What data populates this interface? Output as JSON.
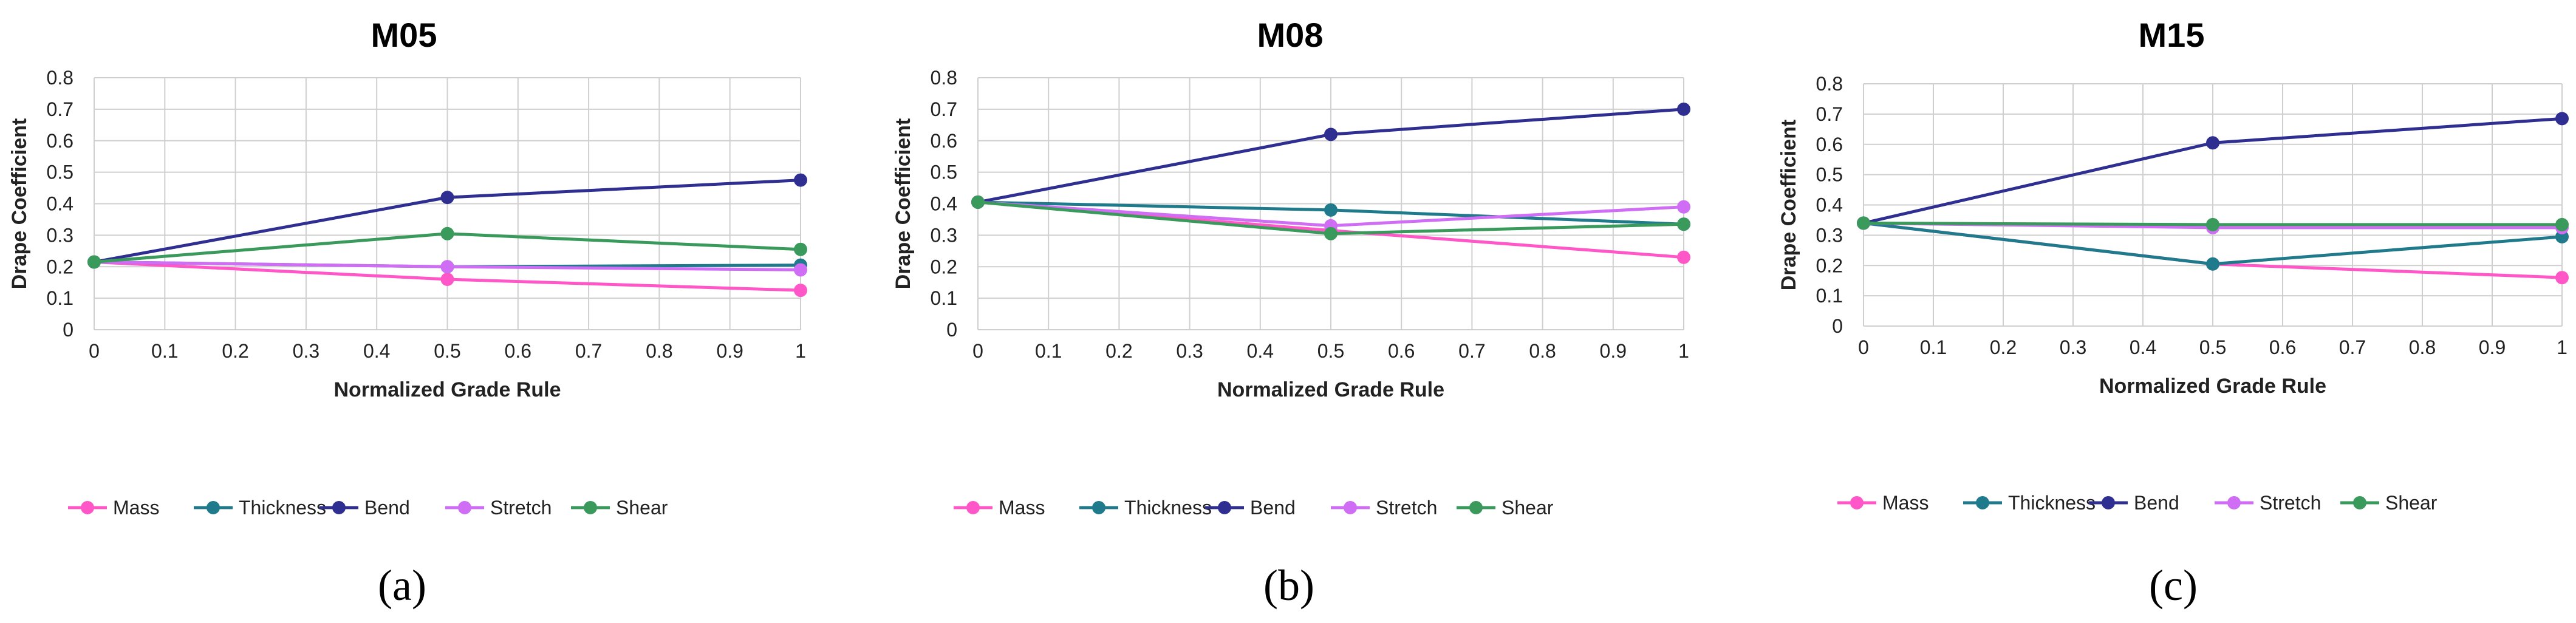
{
  "colors": {
    "Mass": "#ff57c8",
    "Thickness": "#1f7a8c",
    "Bend": "#2e2f91",
    "Stretch": "#cf6df5",
    "Shear": "#3a9a5c"
  },
  "chart_data": [
    {
      "type": "line",
      "title": "M05",
      "xlabel": "Normalized Grade Rule",
      "ylabel": "Drape Coefficient",
      "panel_label": "(a)",
      "x": [
        0,
        0.5,
        1
      ],
      "xlim": [
        0,
        1
      ],
      "ylim": [
        0,
        0.8
      ],
      "xticks": [
        "0",
        "0.1",
        "0.2",
        "0.3",
        "0.4",
        "0.5",
        "0.6",
        "0.7",
        "0.8",
        "0.9",
        "1"
      ],
      "yticks": [
        "0",
        "0.1",
        "0.2",
        "0.3",
        "0.4",
        "0.5",
        "0.6",
        "0.7",
        "0.8"
      ],
      "grid": true,
      "legend": "bottom",
      "series": [
        {
          "name": "Mass",
          "values": [
            0.215,
            0.16,
            0.125
          ]
        },
        {
          "name": "Thickness",
          "values": [
            0.215,
            0.2,
            0.205
          ]
        },
        {
          "name": "Bend",
          "values": [
            0.215,
            0.42,
            0.475
          ]
        },
        {
          "name": "Stretch",
          "values": [
            0.215,
            0.2,
            0.19
          ]
        },
        {
          "name": "Shear",
          "values": [
            0.215,
            0.305,
            0.255
          ]
        }
      ]
    },
    {
      "type": "line",
      "title": "M08",
      "xlabel": "Normalized Grade Rule",
      "ylabel": "Drape Coefficient",
      "panel_label": "(b)",
      "x": [
        0,
        0.5,
        1
      ],
      "xlim": [
        0,
        1
      ],
      "ylim": [
        0,
        0.8
      ],
      "xticks": [
        "0",
        "0.1",
        "0.2",
        "0.3",
        "0.4",
        "0.5",
        "0.6",
        "0.7",
        "0.8",
        "0.9",
        "1"
      ],
      "yticks": [
        "0",
        "0.1",
        "0.2",
        "0.3",
        "0.4",
        "0.5",
        "0.6",
        "0.7",
        "0.8"
      ],
      "grid": true,
      "legend": "bottom",
      "series": [
        {
          "name": "Mass",
          "values": [
            0.405,
            0.315,
            0.23
          ]
        },
        {
          "name": "Thickness",
          "values": [
            0.405,
            0.38,
            0.335
          ]
        },
        {
          "name": "Bend",
          "values": [
            0.405,
            0.62,
            0.7
          ]
        },
        {
          "name": "Stretch",
          "values": [
            0.405,
            0.33,
            0.39
          ]
        },
        {
          "name": "Shear",
          "values": [
            0.405,
            0.305,
            0.335
          ]
        }
      ]
    },
    {
      "type": "line",
      "title": "M15",
      "xlabel": "Normalized Grade Rule",
      "ylabel": "Drape Coefficient",
      "panel_label": "(c)",
      "x": [
        0,
        0.5,
        1
      ],
      "xlim": [
        0,
        1
      ],
      "ylim": [
        0,
        0.8
      ],
      "xticks": [
        "0",
        "0.1",
        "0.2",
        "0.3",
        "0.4",
        "0.5",
        "0.6",
        "0.7",
        "0.8",
        "0.9",
        "1"
      ],
      "yticks": [
        "0",
        "0.1",
        "0.2",
        "0.3",
        "0.4",
        "0.5",
        "0.6",
        "0.7",
        "0.8"
      ],
      "grid": true,
      "legend": "bottom",
      "series": [
        {
          "name": "Mass",
          "values": [
            0.34,
            0.205,
            0.16
          ]
        },
        {
          "name": "Thickness",
          "values": [
            0.34,
            0.205,
            0.295
          ]
        },
        {
          "name": "Bend",
          "values": [
            0.34,
            0.605,
            0.685
          ]
        },
        {
          "name": "Stretch",
          "values": [
            0.34,
            0.325,
            0.325
          ]
        },
        {
          "name": "Shear",
          "values": [
            0.34,
            0.335,
            0.335
          ]
        }
      ]
    }
  ]
}
